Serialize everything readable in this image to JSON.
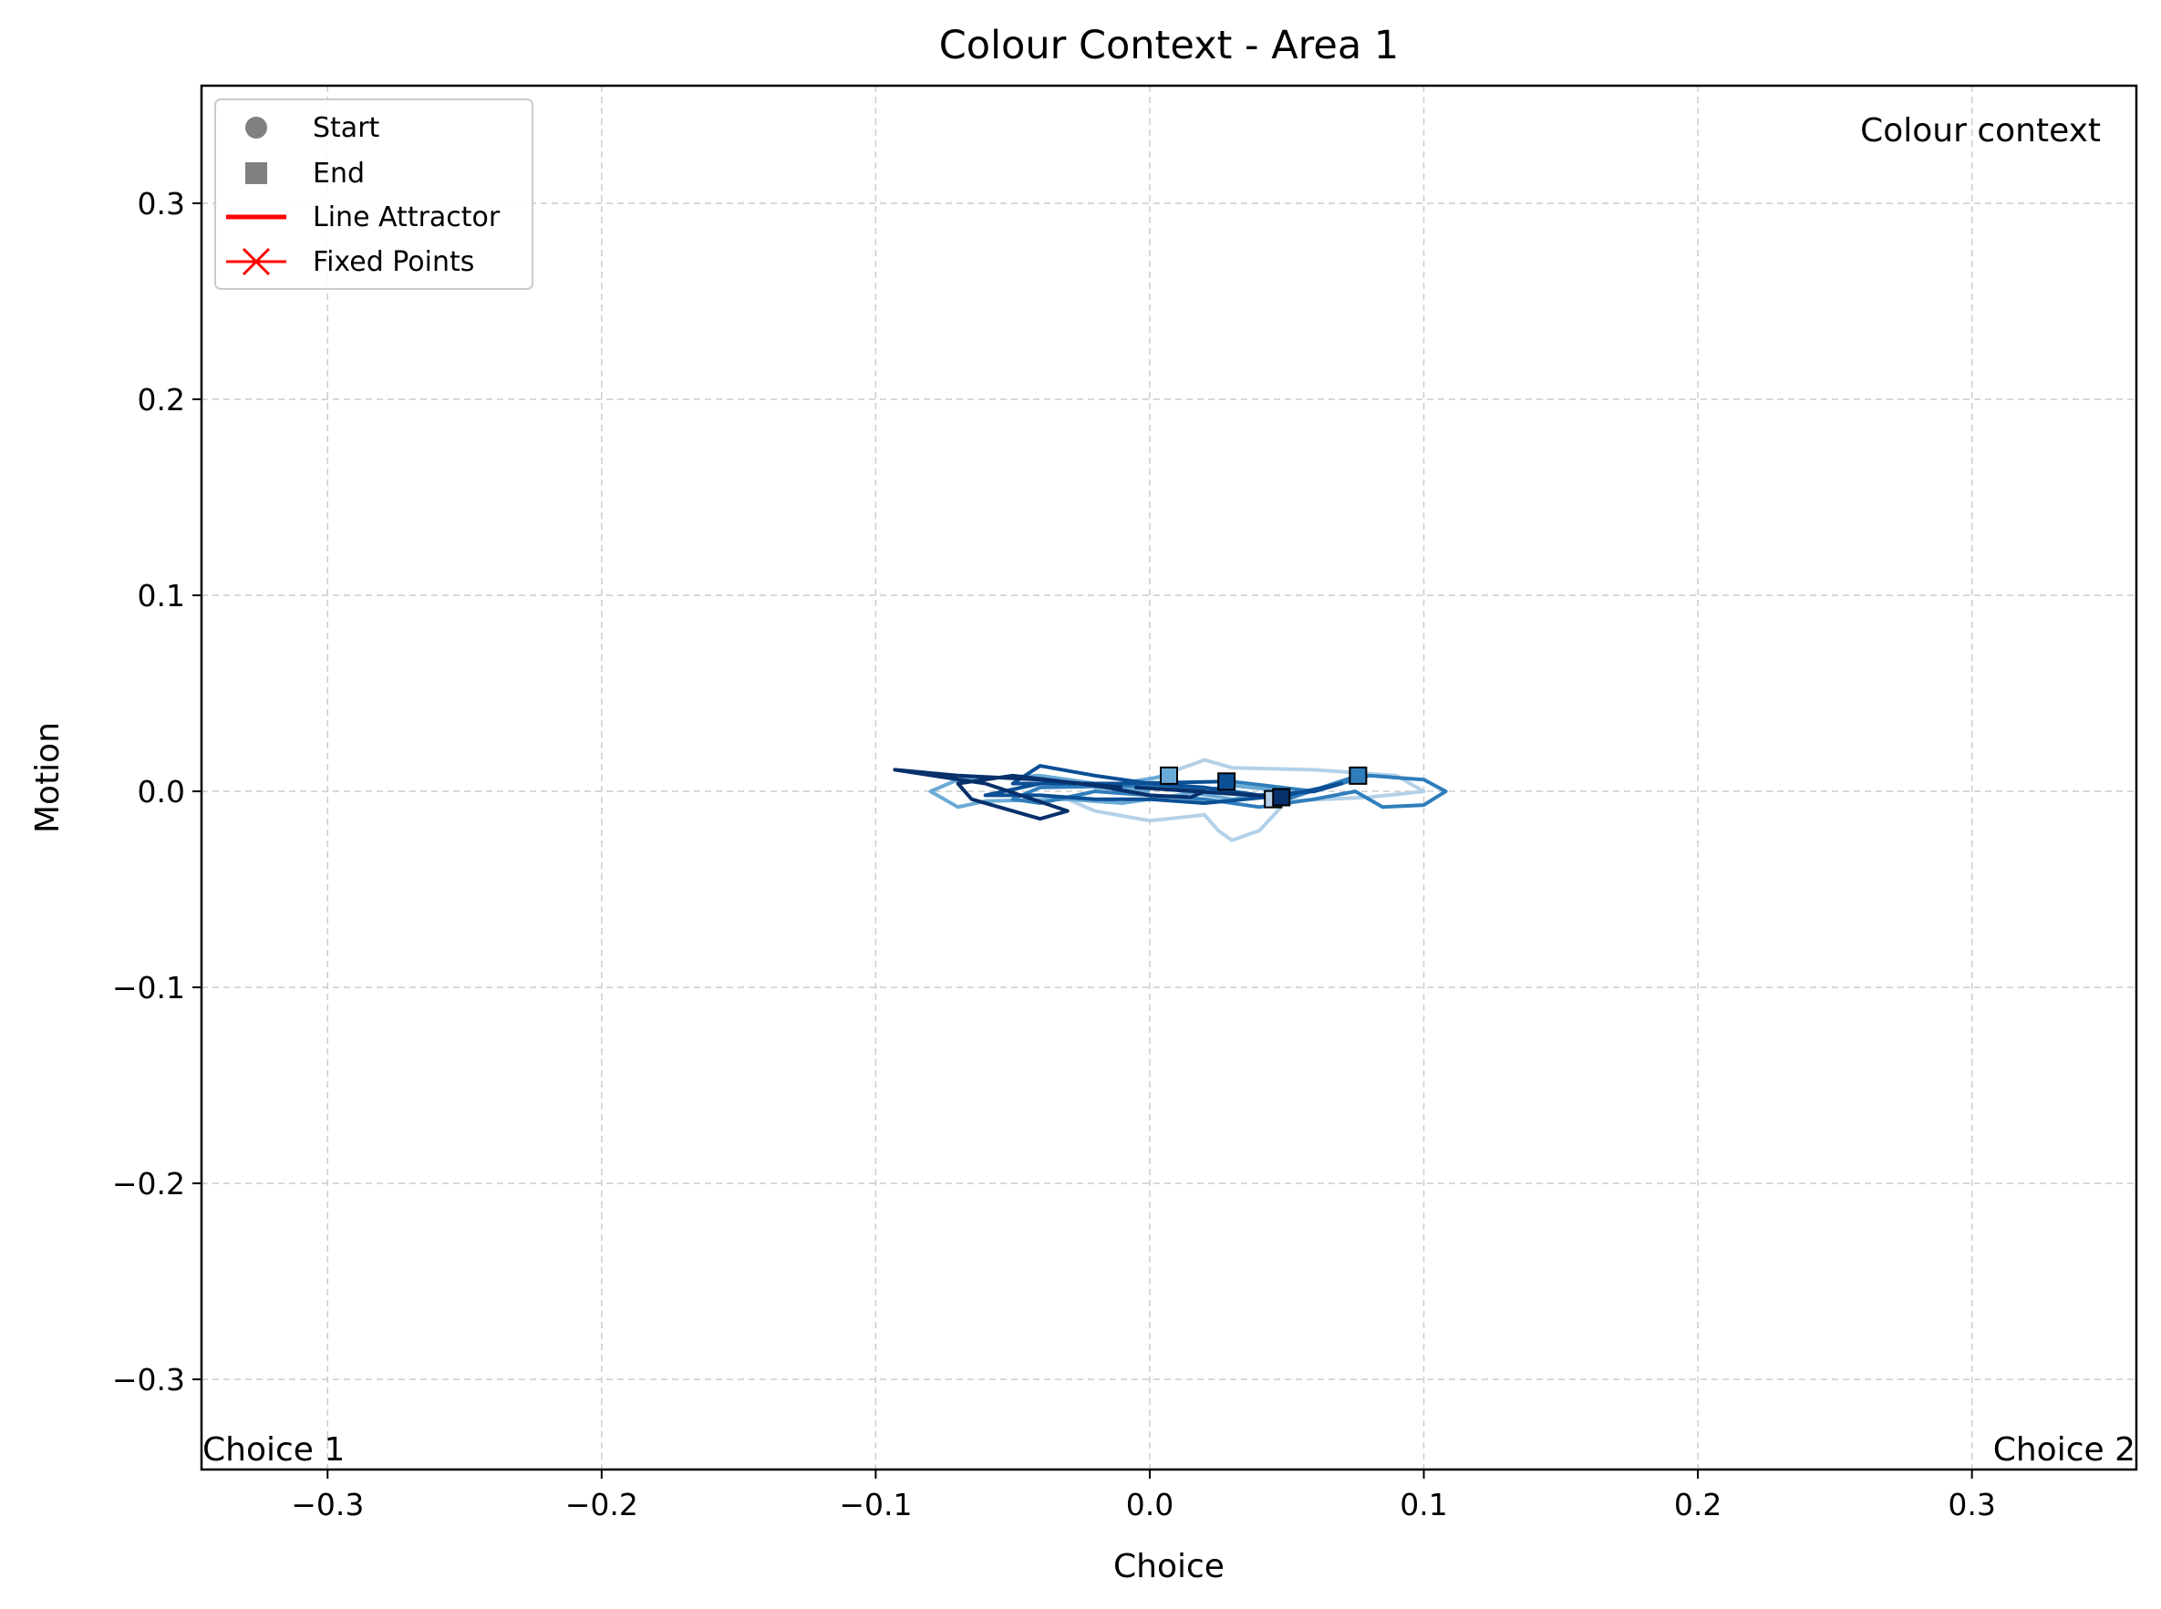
{
  "chart_data": {
    "type": "line",
    "title": "Colour Context - Area 1",
    "xlabel": "Choice",
    "ylabel": "Motion",
    "xlim": [
      -0.346,
      0.36
    ],
    "ylim": [
      -0.346,
      0.36
    ],
    "xticks": [
      -0.3,
      -0.2,
      -0.1,
      0.0,
      0.1,
      0.2,
      0.3
    ],
    "yticks": [
      -0.3,
      -0.2,
      -0.1,
      0.0,
      0.1,
      0.2,
      0.3
    ],
    "xtick_labels": [
      "−0.3",
      "−0.2",
      "−0.1",
      "0.0",
      "0.1",
      "0.2",
      "0.3"
    ],
    "ytick_labels": [
      "−0.3",
      "−0.2",
      "−0.1",
      "0.0",
      "0.1",
      "0.2",
      "0.3"
    ],
    "grid": true,
    "legend_position": "top-left",
    "legend": [
      {
        "label": "Start",
        "marker": "circle",
        "color": "#808080"
      },
      {
        "label": "End",
        "marker": "square",
        "color": "#808080"
      },
      {
        "label": "Line Attractor",
        "marker": "line",
        "color": "#ff0000"
      },
      {
        "label": "Fixed Points",
        "marker": "x-line",
        "color": "#ff0000"
      }
    ],
    "annotations": {
      "top_right": "Colour context",
      "bottom_left": "Choice 1",
      "bottom_right": "Choice 2"
    },
    "series": [
      {
        "color": "#b3d1e8",
        "points": [
          [
            -0.02,
            0.0
          ],
          [
            0.0,
            0.006
          ],
          [
            0.02,
            0.016
          ],
          [
            0.03,
            0.012
          ],
          [
            0.06,
            0.011
          ],
          [
            0.09,
            0.008
          ],
          [
            0.1,
            0.0
          ],
          [
            0.08,
            -0.003
          ],
          [
            0.05,
            -0.005
          ],
          [
            0.04,
            -0.02
          ],
          [
            0.03,
            -0.025
          ],
          [
            0.025,
            -0.02
          ],
          [
            0.02,
            -0.012
          ],
          [
            0.0,
            -0.015
          ],
          [
            -0.02,
            -0.01
          ],
          [
            -0.03,
            -0.004
          ],
          [
            -0.01,
            0.004
          ],
          [
            0.03,
            0.0
          ],
          [
            0.045,
            -0.004
          ]
        ]
      },
      {
        "color": "#6aaad6",
        "points": [
          [
            0.0,
            0.0
          ],
          [
            -0.04,
            0.008
          ],
          [
            -0.07,
            0.006
          ],
          [
            -0.08,
            0.0
          ],
          [
            -0.07,
            -0.008
          ],
          [
            -0.06,
            -0.005
          ],
          [
            -0.03,
            -0.004
          ],
          [
            -0.01,
            -0.006
          ],
          [
            0.01,
            -0.002
          ],
          [
            0.03,
            0.003
          ],
          [
            0.05,
            0.0
          ],
          [
            0.03,
            -0.004
          ],
          [
            0.0,
            0.003
          ],
          [
            -0.02,
            0.002
          ],
          [
            0.007,
            0.008
          ]
        ]
      },
      {
        "color": "#2f7ebc",
        "points": [
          [
            0.03,
            0.005
          ],
          [
            0.06,
            0.0
          ],
          [
            0.08,
            0.008
          ],
          [
            0.1,
            0.006
          ],
          [
            0.108,
            0.0
          ],
          [
            0.1,
            -0.007
          ],
          [
            0.085,
            -0.008
          ],
          [
            0.075,
            0.0
          ],
          [
            0.06,
            -0.004
          ],
          [
            0.04,
            -0.008
          ],
          [
            0.02,
            -0.004
          ],
          [
            0.0,
            -0.002
          ],
          [
            -0.02,
            0.0
          ],
          [
            -0.04,
            -0.006
          ],
          [
            -0.05,
            -0.004
          ],
          [
            -0.04,
            0.002
          ],
          [
            0.0,
            0.003
          ],
          [
            0.03,
            0.0
          ],
          [
            0.05,
            -0.004
          ],
          [
            0.076,
            0.008
          ]
        ]
      },
      {
        "color": "#0b4f95",
        "points": [
          [
            -0.02,
            0.004
          ],
          [
            -0.05,
            0.004
          ],
          [
            -0.04,
            0.013
          ],
          [
            -0.02,
            0.008
          ],
          [
            0.0,
            0.004
          ],
          [
            0.02,
            0.002
          ],
          [
            0.04,
            -0.002
          ],
          [
            0.06,
            0.0
          ],
          [
            0.07,
            0.004
          ],
          [
            0.05,
            -0.002
          ],
          [
            0.02,
            -0.006
          ],
          [
            0.0,
            -0.004
          ],
          [
            -0.02,
            -0.004
          ],
          [
            -0.04,
            -0.002
          ],
          [
            -0.06,
            -0.002
          ],
          [
            -0.04,
            0.004
          ],
          [
            -0.01,
            0.004
          ],
          [
            0.028,
            0.005
          ]
        ]
      },
      {
        "color": "#08306b",
        "points": [
          [
            -0.01,
            0.002
          ],
          [
            -0.04,
            0.006
          ],
          [
            -0.07,
            0.008
          ],
          [
            -0.093,
            0.011
          ],
          [
            -0.06,
            0.004
          ],
          [
            -0.03,
            -0.01
          ],
          [
            -0.04,
            -0.014
          ],
          [
            -0.065,
            -0.004
          ],
          [
            -0.07,
            0.004
          ],
          [
            -0.05,
            0.008
          ],
          [
            -0.02,
            0.003
          ],
          [
            0.0,
            -0.002
          ],
          [
            0.015,
            -0.003
          ],
          [
            0.02,
            0.0
          ],
          [
            -0.005,
            0.002
          ],
          [
            0.048,
            -0.003
          ]
        ]
      }
    ]
  }
}
